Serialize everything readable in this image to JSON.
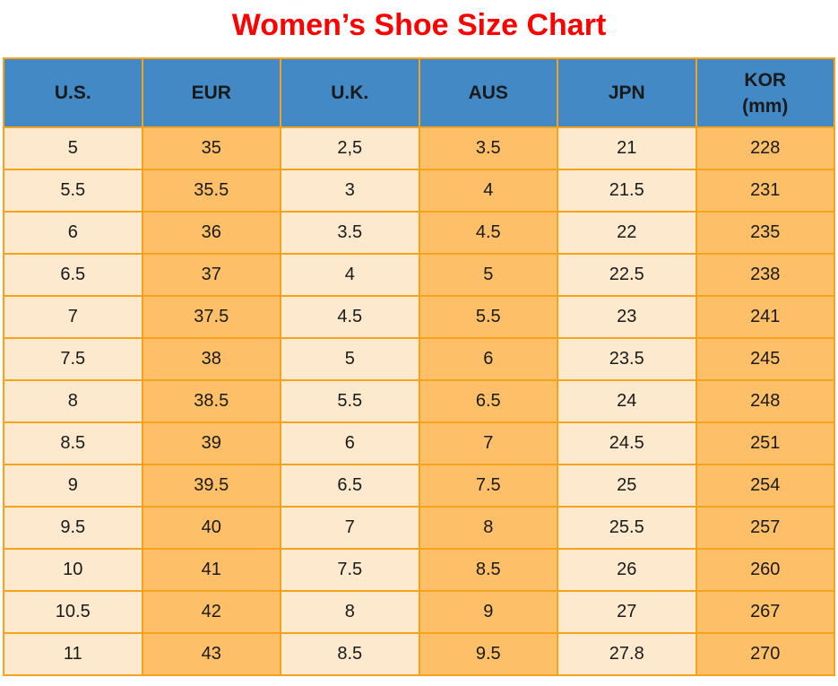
{
  "title": "Women’s Shoe Size Chart",
  "colors": {
    "title_red": "#ff0000",
    "header_blue": "#4289c6",
    "cell_cream": "#fde9ce",
    "cell_orange": "#fdbf68",
    "border_amber": "#f6a21d",
    "cell_text": "#1a1a1a",
    "header_text": "#000000"
  },
  "chart_data": {
    "type": "table",
    "title": "Women’s Shoe Size Chart",
    "columns": [
      {
        "id": "us",
        "lines": [
          "U.S."
        ]
      },
      {
        "id": "eur",
        "lines": [
          "EUR"
        ]
      },
      {
        "id": "uk",
        "lines": [
          "U.K."
        ]
      },
      {
        "id": "aus",
        "lines": [
          "AUS"
        ]
      },
      {
        "id": "jpn",
        "lines": [
          "JPN"
        ]
      },
      {
        "id": "kor",
        "lines": [
          "KOR",
          "(mm)"
        ]
      }
    ],
    "rows": [
      [
        "5",
        "35",
        "2,5",
        "3.5",
        "21",
        "228"
      ],
      [
        "5.5",
        "35.5",
        "3",
        "4",
        "21.5",
        "231"
      ],
      [
        "6",
        "36",
        "3.5",
        "4.5",
        "22",
        "235"
      ],
      [
        "6.5",
        "37",
        "4",
        "5",
        "22.5",
        "238"
      ],
      [
        "7",
        "37.5",
        "4.5",
        "5.5",
        "23",
        "241"
      ],
      [
        "7.5",
        "38",
        "5",
        "6",
        "23.5",
        "245"
      ],
      [
        "8",
        "38.5",
        "5.5",
        "6.5",
        "24",
        "248"
      ],
      [
        "8.5",
        "39",
        "6",
        "7",
        "24.5",
        "251"
      ],
      [
        "9",
        "39.5",
        "6.5",
        "7.5",
        "25",
        "254"
      ],
      [
        "9.5",
        "40",
        "7",
        "8",
        "25.5",
        "257"
      ],
      [
        "10",
        "41",
        "7.5",
        "8.5",
        "26",
        "260"
      ],
      [
        "10.5",
        "42",
        "8",
        "9",
        "27",
        "267"
      ],
      [
        "11",
        "43",
        "8.5",
        "9.5",
        "27.8",
        "270"
      ]
    ],
    "layout_hints": {
      "column_fill_pattern": [
        "cream",
        "orange",
        "cream",
        "orange",
        "cream",
        "orange"
      ],
      "header_fill": "blue",
      "grid": "on"
    }
  }
}
